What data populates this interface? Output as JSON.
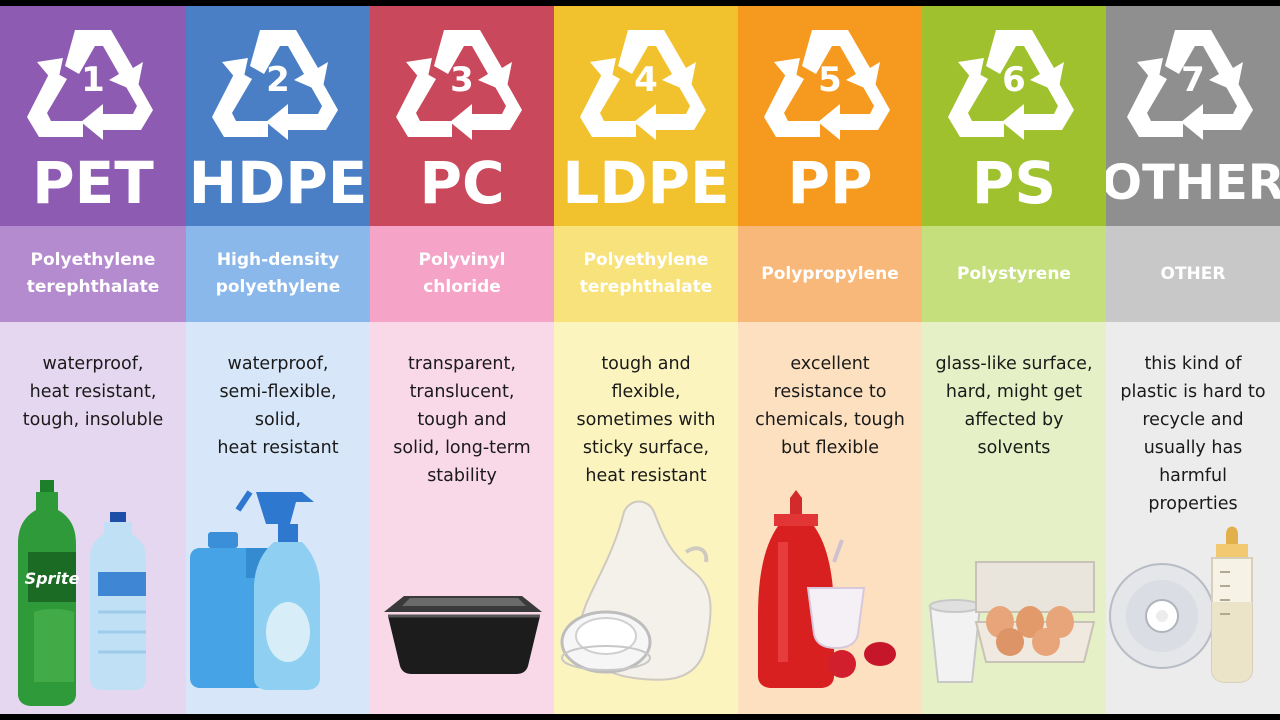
{
  "columns": [
    {
      "number": "1",
      "abbr": "PET",
      "name": "Polyethylene\nterephthalate",
      "description": "waterproof,\nheat resistant,\ntough, insoluble",
      "top_color": "#8e5bb3",
      "mid_color": "#b58bd0",
      "bottom_color": "#e6d7f0",
      "product_icon": "bottles-icon"
    },
    {
      "number": "2",
      "abbr": "HDPE",
      "name": "High-density\npolyethylene",
      "description": "waterproof,\nsemi-flexible,\nsolid,\nheat resistant",
      "top_color": "#4a7fc6",
      "mid_color": "#8bb8ea",
      "bottom_color": "#d7e7f9",
      "product_icon": "detergent-bottles-icon"
    },
    {
      "number": "3",
      "abbr": "PC",
      "name": "Polyvinyl\nchloride",
      "description": "transparent,\ntranslucent,\ntough and\nsolid, long-term\nstability",
      "top_color": "#c9485b",
      "mid_color": "#f5a3c7",
      "bottom_color": "#f9d8e8",
      "product_icon": "food-container-icon"
    },
    {
      "number": "4",
      "abbr": "LDPE",
      "name": "Polyethylene\nterephthalate",
      "description": "tough and\nflexible,\nsometimes with\nsticky surface,\nheat resistant",
      "top_color": "#f2c12e",
      "mid_color": "#f7e27c",
      "bottom_color": "#fcf4bf",
      "product_icon": "plastic-bag-icon"
    },
    {
      "number": "5",
      "abbr": "PP",
      "name": "Polypropylene",
      "description": "excellent\nresistance to\nchemicals, tough\nbut flexible",
      "top_color": "#f59a1e",
      "mid_color": "#f8b87a",
      "bottom_color": "#fce0bf",
      "product_icon": "ketchup-bottle-icon"
    },
    {
      "number": "6",
      "abbr": "PS",
      "name": "Polystyrene",
      "description": "glass-like surface,\nhard, might get\naffected by\nsolvents",
      "top_color": "#9ec12d",
      "mid_color": "#c5df7c",
      "bottom_color": "#e5f0c6",
      "product_icon": "egg-carton-icon"
    },
    {
      "number": "7",
      "abbr": "OTHER",
      "name": "OTHER",
      "description": "this kind of\nplastic is hard to\nrecycle and\nusually has\nharmful\nproperties",
      "top_color": "#8f8f8f",
      "mid_color": "#c8c8c8",
      "bottom_color": "#ececec",
      "product_icon": "cd-and-baby-bottle-icon"
    }
  ]
}
